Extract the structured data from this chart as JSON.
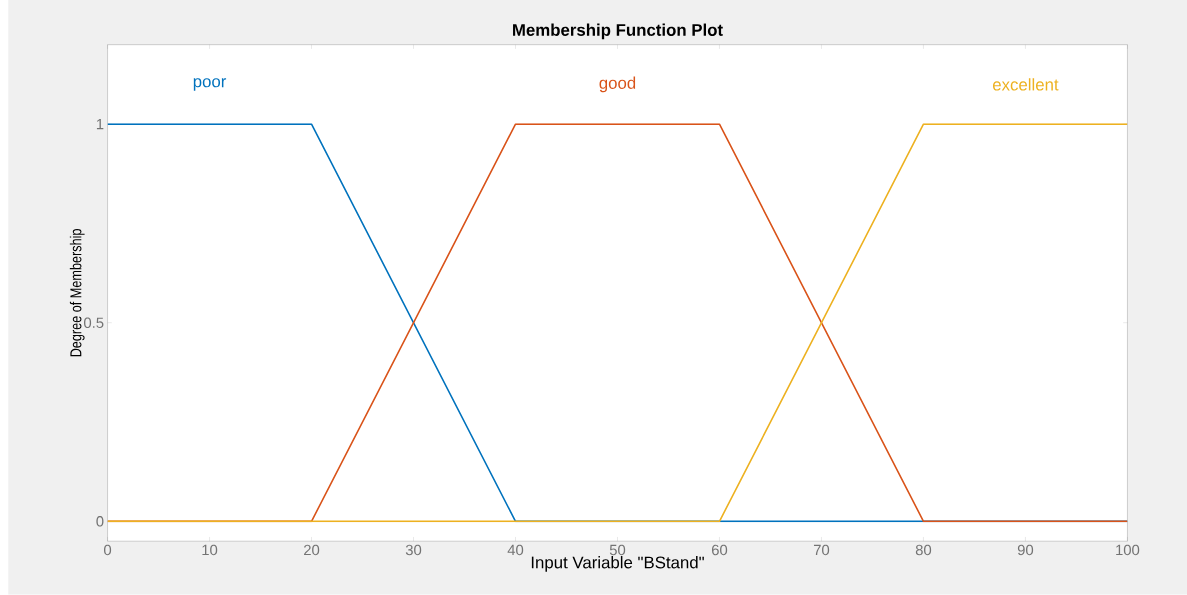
{
  "chart_data": {
    "type": "line",
    "title": "Membership Function Plot",
    "xlabel": "Input Variable \"BStand\"",
    "ylabel": "Degree of Membership",
    "xlim": [
      0,
      100
    ],
    "ylim": [
      -0.05,
      1.2
    ],
    "xticks": [
      0,
      10,
      20,
      30,
      40,
      50,
      60,
      70,
      80,
      90,
      100
    ],
    "yticks": [
      0,
      0.5,
      1
    ],
    "series": [
      {
        "name": "poor",
        "color": "#0072bd",
        "x": [
          0,
          20,
          40,
          100
        ],
        "values": [
          1,
          1,
          0,
          0
        ]
      },
      {
        "name": "good",
        "color": "#d95319",
        "x": [
          0,
          20,
          40,
          60,
          80,
          100
        ],
        "values": [
          0,
          0,
          1,
          1,
          0,
          0
        ]
      },
      {
        "name": "excellent",
        "color": "#edb120",
        "x": [
          0,
          60,
          80,
          100
        ],
        "values": [
          0,
          0,
          1,
          1
        ]
      }
    ]
  }
}
